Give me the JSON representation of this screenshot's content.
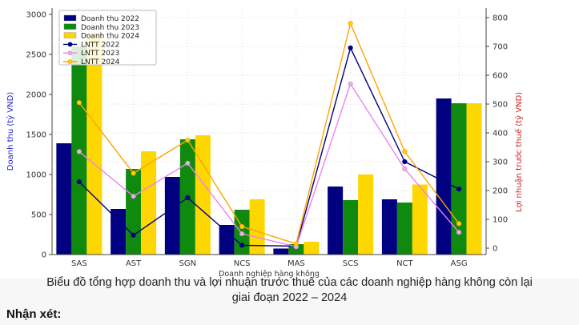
{
  "page": {
    "caption_line1": "Biểu đồ tổng hợp doanh thu và lợi nhuận trước thuế của các doanh nghiệp hàng không còn lại",
    "caption_line2": "giai đoạn 2022 – 2024",
    "note_label": "Nhận xét:"
  },
  "chart_data": {
    "type": "bar+line combo, dual y-axes",
    "categories": [
      "SAS",
      "AST",
      "SGN",
      "NCS",
      "MAS",
      "SCS",
      "NCT",
      "ASG"
    ],
    "bar_series": [
      {
        "name": "Doanh thu 2022",
        "color": "#000080",
        "values": [
          1390,
          570,
          970,
          370,
          75,
          850,
          690,
          1950
        ]
      },
      {
        "name": "Doanh thu 2023",
        "color": "#0f8a0f",
        "values": [
          2600,
          1070,
          1440,
          560,
          130,
          680,
          650,
          1890
        ]
      },
      {
        "name": "Doanh thu 2024",
        "color": "#FFD700",
        "values": [
          2760,
          1290,
          1490,
          690,
          160,
          1000,
          875,
          1890
        ]
      }
    ],
    "line_series": [
      {
        "name": "LNTT 2022",
        "color": "#000080",
        "marker_fill": "#000080",
        "values": [
          230,
          45,
          175,
          10,
          7,
          695,
          300,
          205
        ]
      },
      {
        "name": "LNTT 2023",
        "color": "#EE82EE",
        "marker_fill": "#c9c9c9",
        "values": [
          335,
          180,
          295,
          50,
          5,
          570,
          275,
          55
        ]
      },
      {
        "name": "LNTT 2024",
        "color": "#FFA500",
        "marker_fill": "#FFD700",
        "values": [
          505,
          260,
          375,
          75,
          15,
          780,
          335,
          85
        ]
      }
    ],
    "left_axis": {
      "label": "Doanh thu (tỷ VND)",
      "min": 0,
      "max": 3000,
      "step": 500,
      "label_color": "#2222cc",
      "tick_color": "#333333"
    },
    "right_axis": {
      "label": "Lợi nhuận trước thuế (tỷ VND)",
      "min": 0,
      "max": 800,
      "step": 100,
      "label_color": "#cc2222",
      "tick_color": "#333333"
    },
    "xlabel": "Doanh nghiệp hàng không",
    "legend_position": "upper-left",
    "grid": "dotted horizontal at right-axis ticks + dotted vertical at category centers"
  }
}
